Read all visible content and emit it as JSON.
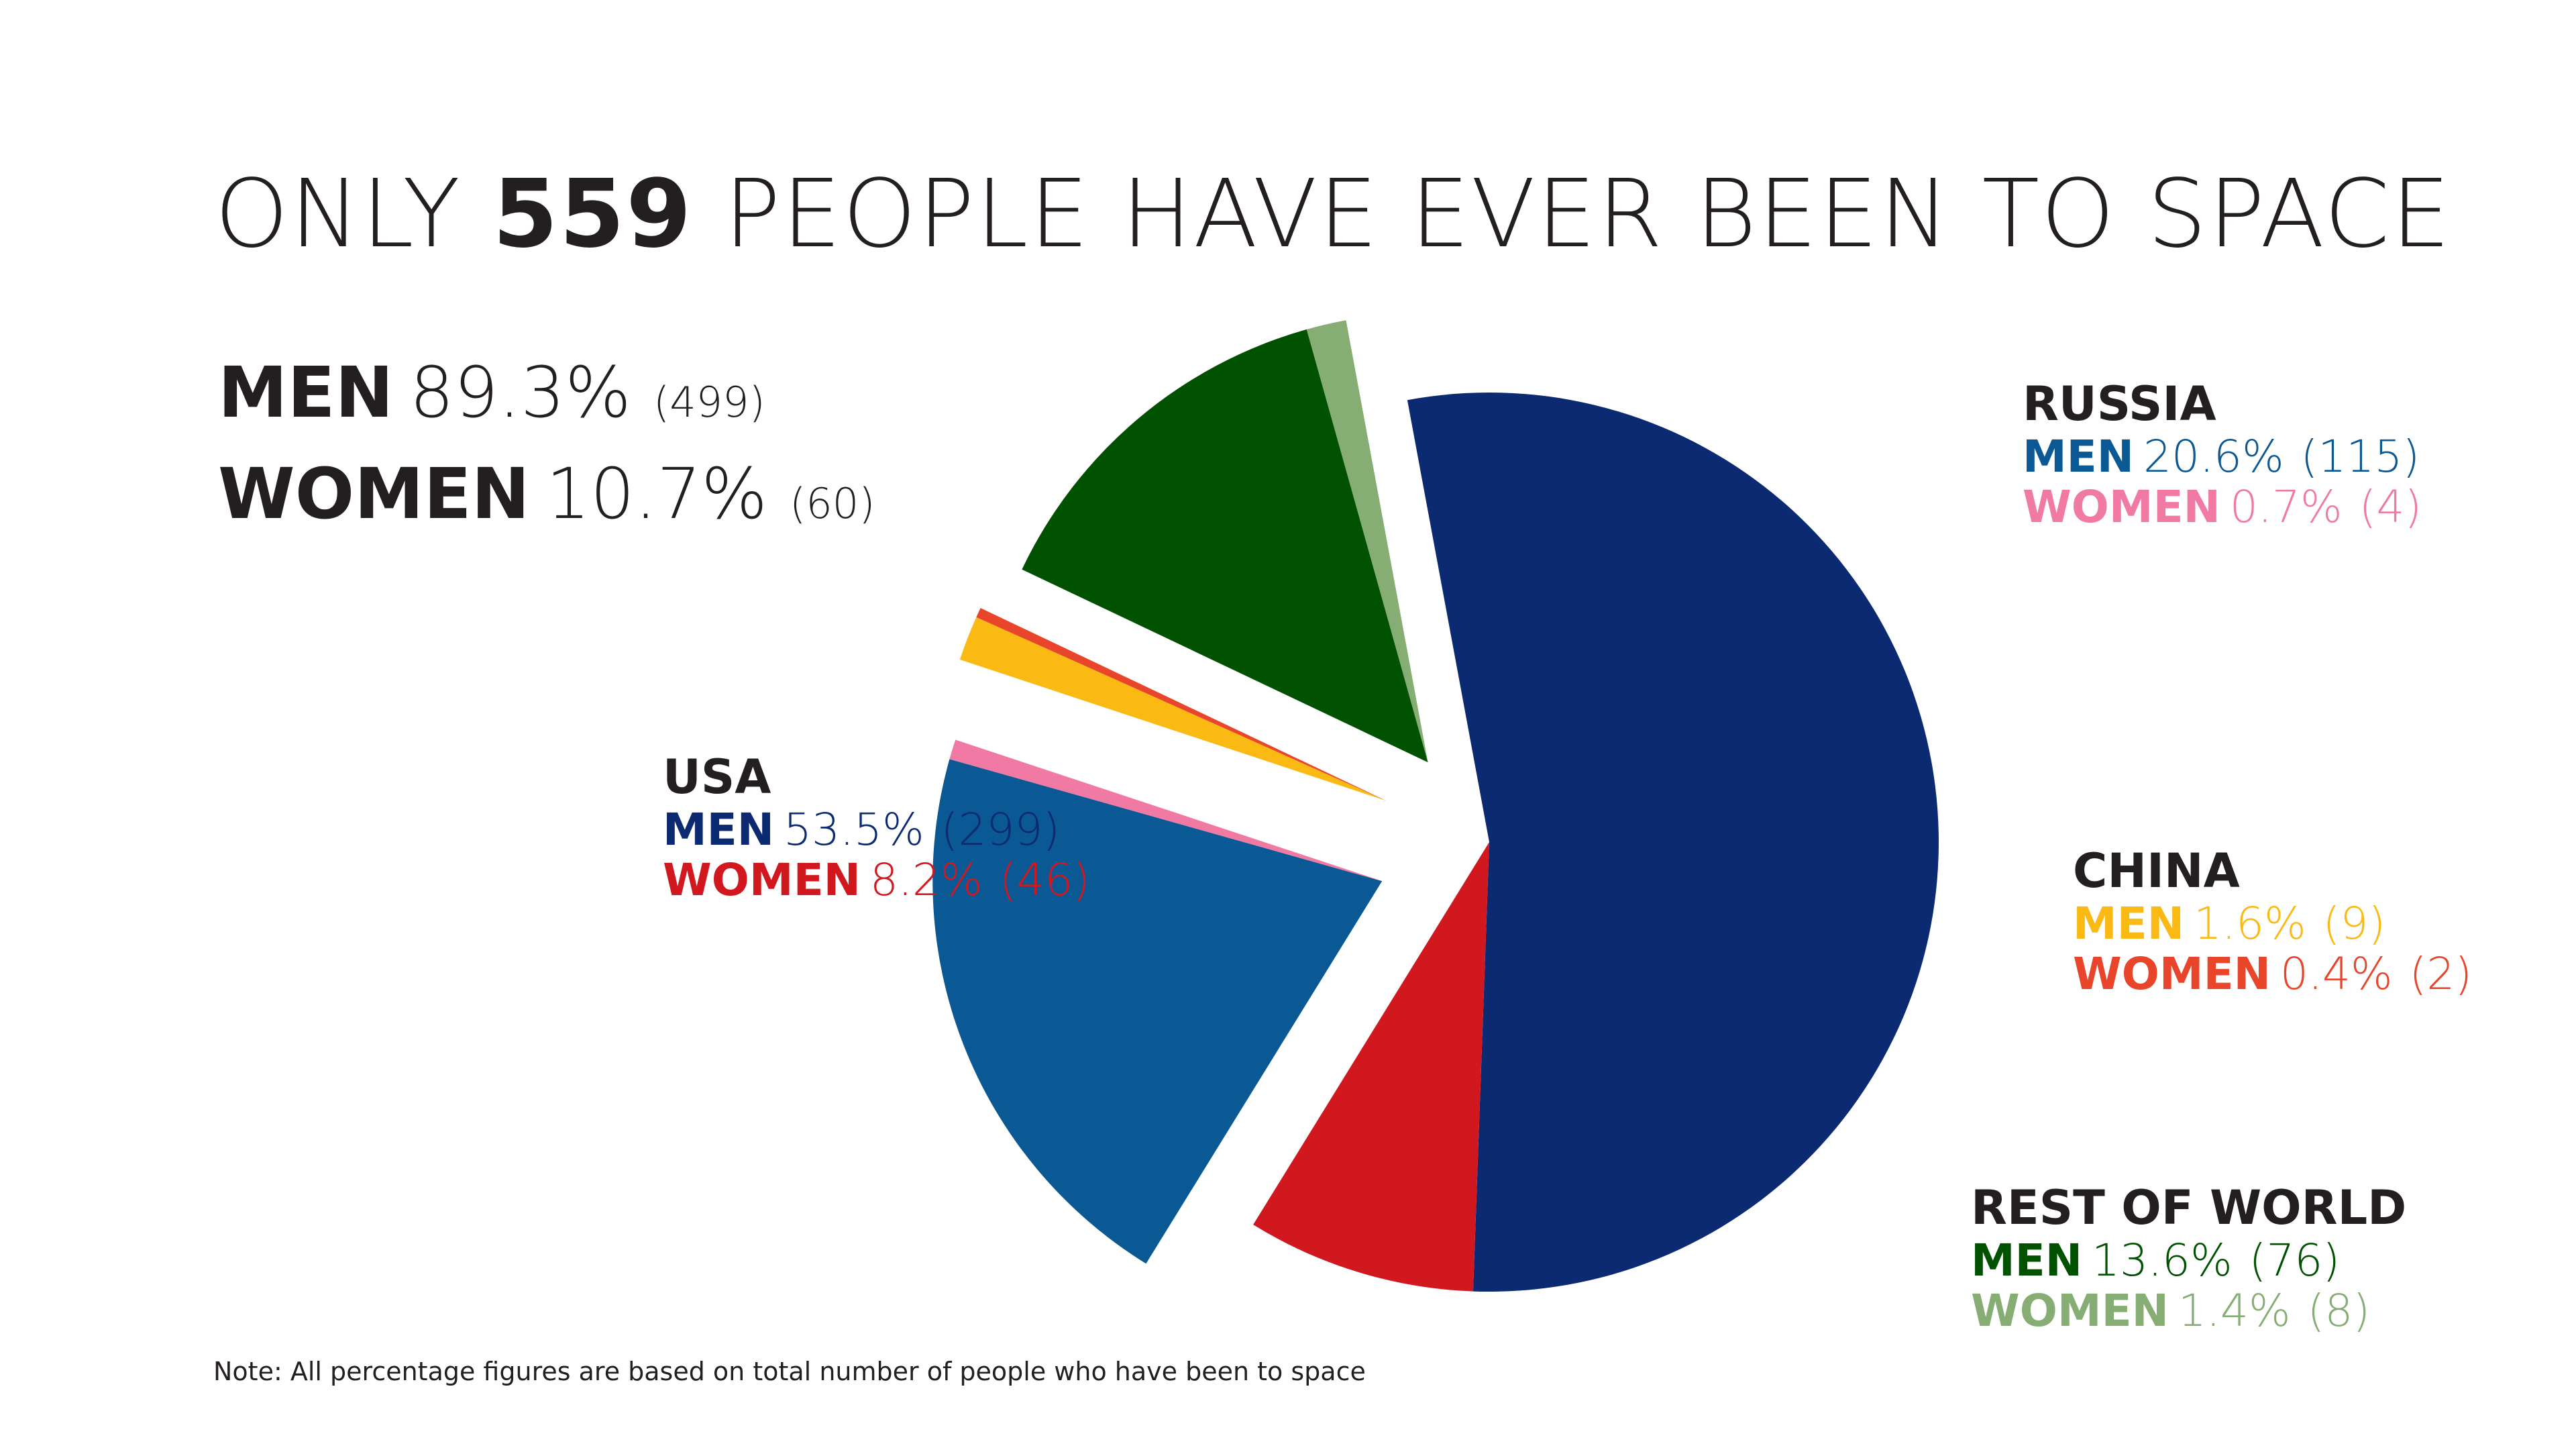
{
  "title": {
    "pre": "ONLY ",
    "num": "559",
    "post": " PEOPLE HAVE EVER BEEN TO SPACE"
  },
  "totals": {
    "men": {
      "label": "MEN",
      "pct": "89.3%",
      "count": "(499)"
    },
    "women": {
      "label": "WOMEN",
      "pct": "10.7%",
      "count": "(60)"
    }
  },
  "note": "Note: All percentage figures are based on total number of people who have been to space",
  "chart_data": {
    "type": "pie",
    "title": "ONLY 559 PEOPLE HAVE EVER BEEN TO SPACE",
    "total": 559,
    "groups": [
      {
        "name": "USA",
        "men": {
          "label": "MEN",
          "pct": "53.5%",
          "count": "(299)",
          "value": 299,
          "color": "#0c2a72"
        },
        "women": {
          "label": "WOMEN",
          "pct": "8.2%",
          "count": "(46)",
          "value": 46,
          "color": "#d2181f"
        }
      },
      {
        "name": "RUSSIA",
        "men": {
          "label": "MEN",
          "pct": "20.6%",
          "count": "(115)",
          "value": 115,
          "color": "#0a5894"
        },
        "women": {
          "label": "WOMEN",
          "pct": "0.7%",
          "count": "(4)",
          "value": 4,
          "color": "#f17aa5"
        }
      },
      {
        "name": "CHINA",
        "men": {
          "label": "MEN",
          "pct": "1.6%",
          "count": "(9)",
          "value": 9,
          "color": "#fbb914"
        },
        "women": {
          "label": "WOMEN",
          "pct": "0.4%",
          "count": "(2)",
          "value": 2,
          "color": "#e8452b"
        }
      },
      {
        "name": "REST OF WORLD",
        "men": {
          "label": "MEN",
          "pct": "13.6%",
          "count": "(76)",
          "value": 76,
          "color": "#005200"
        },
        "women": {
          "label": "WOMEN",
          "pct": "1.4%",
          "count": "(8)",
          "value": 8,
          "color": "#86ad73"
        }
      }
    ]
  }
}
